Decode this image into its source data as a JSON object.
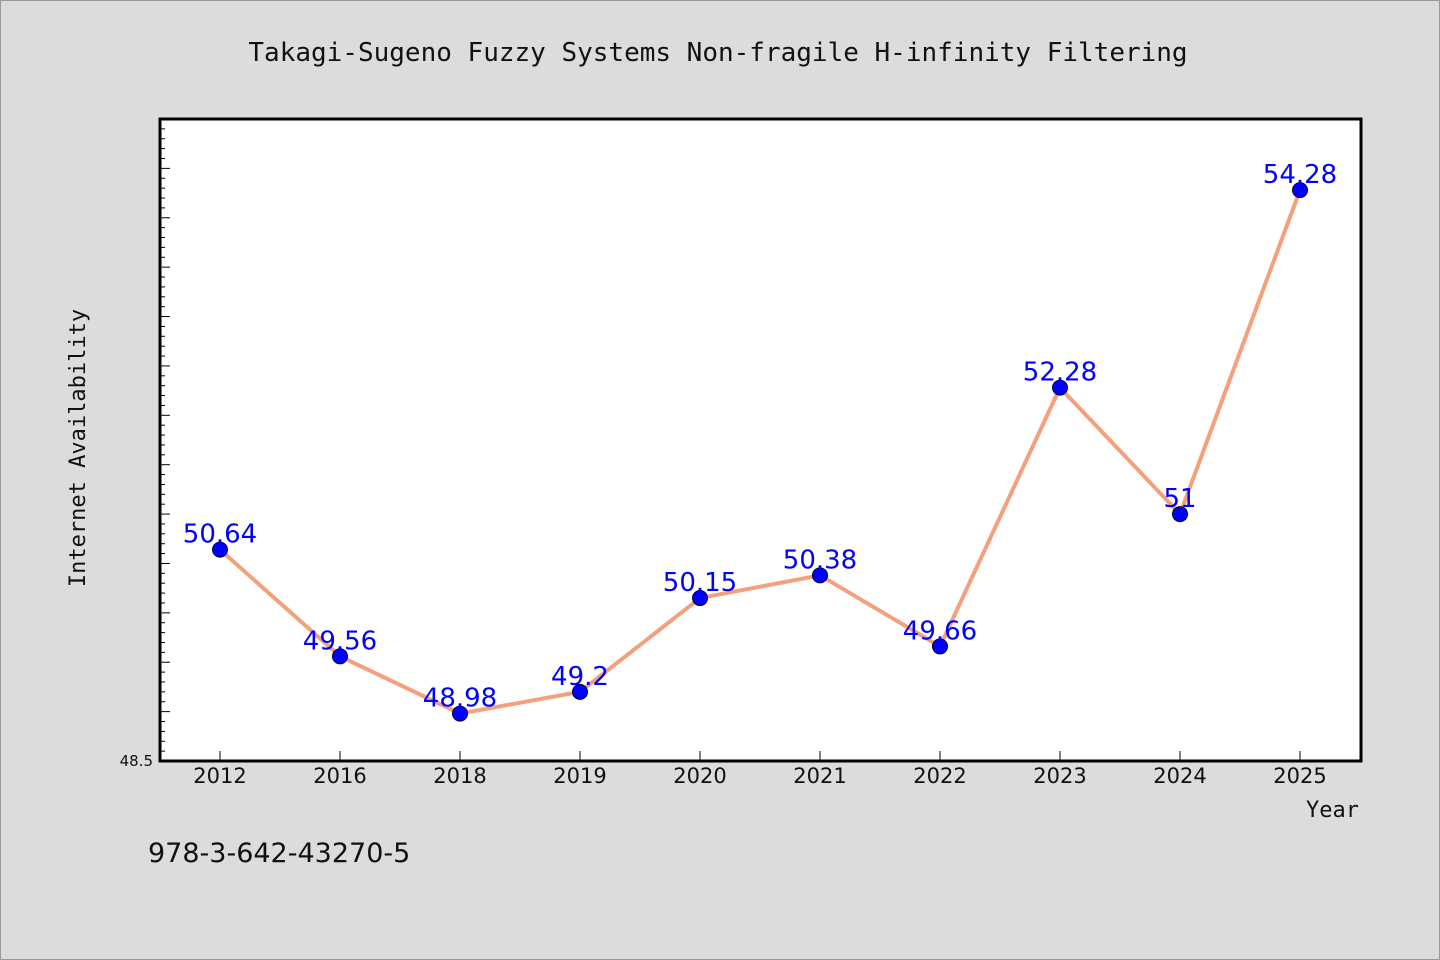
{
  "chart_data": {
    "type": "line",
    "title": "Takagi-Sugeno Fuzzy Systems Non-fragile H-infinity Filtering",
    "xlabel": "Year",
    "ylabel": "Internet Availability",
    "categories": [
      "2012",
      "2016",
      "2018",
      "2019",
      "2020",
      "2021",
      "2022",
      "2023",
      "2024",
      "2025"
    ],
    "values": [
      50.64,
      49.56,
      48.98,
      49.2,
      50.15,
      50.38,
      49.66,
      52.28,
      51,
      54.28
    ],
    "data_labels": [
      "50.64",
      "49.56",
      "48.98",
      "49.2",
      "50.15",
      "50.38",
      "49.66",
      "52.28",
      "51",
      "54.28"
    ],
    "ylim": [
      48.5,
      55
    ],
    "yticks_labeled": [
      "48.5"
    ],
    "grid": false,
    "line_color": "#f4a07c",
    "marker_color": "#0000ff",
    "label_color": "#0000ff"
  },
  "footer": {
    "isbn": "978-3-642-43270-5"
  }
}
